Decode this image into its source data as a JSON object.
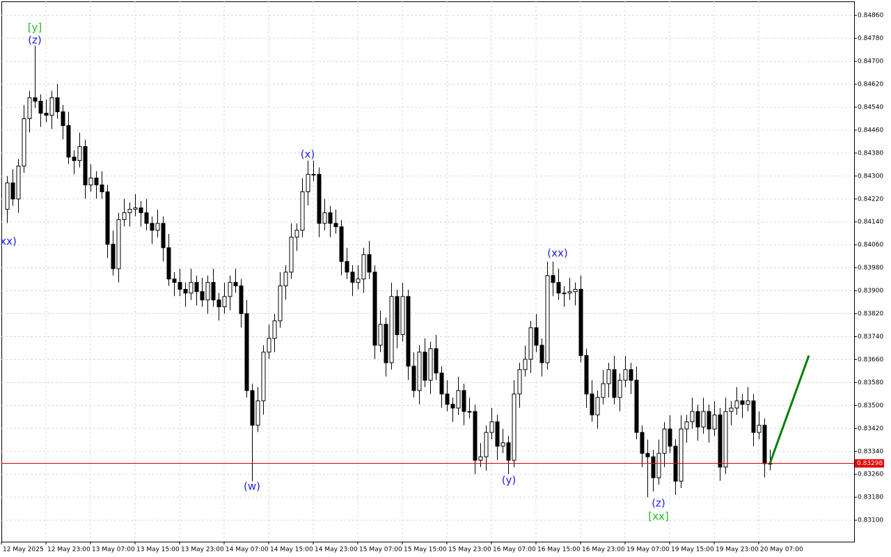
{
  "chart_data": {
    "type": "candlestick",
    "open": [
      0.84184,
      0.84276,
      0.8422,
      0.84335,
      0.845,
      0.84573,
      0.84561,
      0.84519,
      0.84512,
      0.84573,
      0.84524,
      0.84476,
      0.84366,
      0.84354,
      0.84403,
      0.84269,
      0.84293,
      0.84269,
      0.84245,
      0.84062,
      0.83977,
      0.84148,
      0.84172,
      0.84184,
      0.84189,
      0.84172,
      0.84135,
      0.84111,
      0.84135,
      0.8405,
      0.83941,
      0.83929,
      0.83905,
      0.83892,
      0.83929,
      0.83897,
      0.83868,
      0.83929,
      0.83868,
      0.83844,
      0.8388,
      0.83929,
      0.83917,
      0.8382,
      0.83552,
      0.83431,
      0.83516,
      0.83686,
      0.83734,
      0.83795,
      0.83917,
      0.83965,
      0.84087,
      0.84111,
      0.84245,
      0.84306,
      0.84306,
      0.84135,
      0.84172,
      0.84135,
      0.84123,
      0.84002,
      0.83965,
      0.83929,
      0.83941,
      0.84026,
      0.83965,
      0.8371,
      0.83783,
      0.83649,
      0.8388,
      0.83747,
      0.8388,
      0.83637,
      0.83552,
      0.83686,
      0.83588,
      0.83698,
      0.83613,
      0.8354,
      0.83504,
      0.83491,
      0.83552,
      0.83479,
      0.83479,
      0.83309,
      0.83321,
      0.83406,
      0.83443,
      0.83358,
      0.8337,
      0.83309,
      0.8354,
      0.83625,
      0.83661,
      0.83771,
      0.8371,
      0.83649,
      0.83953,
      0.83929,
      0.83892,
      0.83892,
      0.83897,
      0.83905,
      0.83674,
      0.8354,
      0.83467,
      0.83528,
      0.83576,
      0.83625,
      0.83528,
      0.83588,
      0.83625,
      0.83588,
      0.83406,
      0.83333,
      0.83321,
      0.83248,
      0.83333,
      0.83418,
      0.83358,
      0.83236,
      0.83418,
      0.83443,
      0.83479,
      0.83425,
      0.83479,
      0.83418,
      0.83467,
      0.83285,
      0.83479,
      0.83491,
      0.83516,
      0.83504,
      0.83516,
      0.83406,
      0.83431,
      0.83297
    ],
    "high": [
      0.843,
      0.84324,
      0.84359,
      0.84548,
      0.84597,
      0.84755,
      0.84585,
      0.84567,
      0.84597,
      0.84621,
      0.84548,
      0.84524,
      0.8439,
      0.84451,
      0.84427,
      0.84341,
      0.84317,
      0.84317,
      0.84269,
      0.8411,
      0.84172,
      0.8422,
      0.84208,
      0.84237,
      0.84213,
      0.8422,
      0.84159,
      0.84183,
      0.84159,
      0.84098,
      0.83965,
      0.83977,
      0.83929,
      0.83977,
      0.83953,
      0.83945,
      0.83953,
      0.83977,
      0.83892,
      0.83928,
      0.83953,
      0.83977,
      0.83941,
      0.83868,
      0.83576,
      0.83564,
      0.8371,
      0.83782,
      0.83819,
      0.83965,
      0.83989,
      0.84135,
      0.84135,
      0.84293,
      0.84354,
      0.84354,
      0.8433,
      0.8422,
      0.84196,
      0.84183,
      0.84147,
      0.8405,
      0.83989,
      0.83989,
      0.8405,
      0.84074,
      0.83989,
      0.83831,
      0.83807,
      0.83928,
      0.83904,
      0.83928,
      0.83904,
      0.83685,
      0.8371,
      0.83734,
      0.83722,
      0.83746,
      0.83637,
      0.83588,
      0.83528,
      0.836,
      0.83576,
      0.83527,
      0.83503,
      0.83369,
      0.8343,
      0.83491,
      0.83467,
      0.83418,
      0.83394,
      0.83588,
      0.83649,
      0.83709,
      0.83795,
      0.83819,
      0.83734,
      0.84001,
      0.84002,
      0.83977,
      0.83916,
      0.83945,
      0.83929,
      0.83953,
      0.83698,
      0.83588,
      0.83552,
      0.83624,
      0.83649,
      0.83673,
      0.83612,
      0.83673,
      0.83649,
      0.83636,
      0.8343,
      0.83381,
      0.83345,
      0.83381,
      0.83442,
      0.83466,
      0.83382,
      0.83466,
      0.83467,
      0.83527,
      0.83503,
      0.83527,
      0.83503,
      0.83515,
      0.83491,
      0.83527,
      0.83515,
      0.83564,
      0.8354,
      0.83564,
      0.8354,
      0.83479,
      0.83455,
      0.83346
    ],
    "low": [
      0.84136,
      0.84196,
      0.84172,
      0.84311,
      0.84452,
      0.84537,
      0.84471,
      0.84488,
      0.84464,
      0.845,
      0.84428,
      0.84342,
      0.84306,
      0.8433,
      0.84221,
      0.84245,
      0.84221,
      0.84221,
      0.84014,
      0.83953,
      0.83929,
      0.84124,
      0.84124,
      0.8416,
      0.84124,
      0.84111,
      0.84063,
      0.84087,
      0.84002,
      0.83917,
      0.83881,
      0.83881,
      0.83844,
      0.83868,
      0.83849,
      0.83844,
      0.8382,
      0.83844,
      0.83796,
      0.8382,
      0.83832,
      0.83893,
      0.83772,
      0.83528,
      0.83236,
      0.83407,
      0.83468,
      0.83662,
      0.83686,
      0.83771,
      0.83869,
      0.83941,
      0.84039,
      0.84087,
      0.84197,
      0.84282,
      0.84087,
      0.84111,
      0.84087,
      0.84099,
      0.83954,
      0.83941,
      0.83881,
      0.83905,
      0.83893,
      0.83941,
      0.83662,
      0.83686,
      0.83601,
      0.83625,
      0.83699,
      0.83723,
      0.83589,
      0.83528,
      0.83504,
      0.83564,
      0.8354,
      0.83589,
      0.83492,
      0.8348,
      0.83443,
      0.83467,
      0.83431,
      0.83455,
      0.83261,
      0.83285,
      0.83273,
      0.83382,
      0.8331,
      0.83334,
      0.83261,
      0.83285,
      0.83492,
      0.83601,
      0.83613,
      0.83686,
      0.83601,
      0.83625,
      0.83881,
      0.83868,
      0.83844,
      0.83868,
      0.83849,
      0.8365,
      0.83492,
      0.83443,
      0.83419,
      0.83504,
      0.83528,
      0.83504,
      0.8348,
      0.83564,
      0.8354,
      0.83382,
      0.83285,
      0.8318,
      0.832,
      0.83224,
      0.83285,
      0.83334,
      0.83188,
      0.83212,
      0.8337,
      0.83419,
      0.83377,
      0.83401,
      0.8337,
      0.83394,
      0.83237,
      0.83261,
      0.83431,
      0.83467,
      0.83456,
      0.8348,
      0.83358,
      0.83382,
      0.83249,
      0.83274
    ],
    "close": [
      0.84276,
      0.8422,
      0.84335,
      0.845,
      0.84573,
      0.84561,
      0.84519,
      0.84512,
      0.84573,
      0.84524,
      0.84476,
      0.84366,
      0.84354,
      0.84403,
      0.84269,
      0.84293,
      0.84269,
      0.84245,
      0.84062,
      0.83977,
      0.84148,
      0.84172,
      0.84184,
      0.84189,
      0.84172,
      0.84135,
      0.84111,
      0.84135,
      0.8405,
      0.83941,
      0.83929,
      0.83905,
      0.83892,
      0.83929,
      0.83897,
      0.83868,
      0.83929,
      0.83868,
      0.83844,
      0.8388,
      0.83929,
      0.83917,
      0.8382,
      0.83552,
      0.83431,
      0.83516,
      0.83686,
      0.83734,
      0.83795,
      0.83917,
      0.83965,
      0.84087,
      0.84111,
      0.84245,
      0.84306,
      0.84306,
      0.84135,
      0.84172,
      0.84135,
      0.84123,
      0.84002,
      0.83965,
      0.83929,
      0.83941,
      0.84026,
      0.83965,
      0.8371,
      0.83783,
      0.83649,
      0.8388,
      0.83747,
      0.8388,
      0.83637,
      0.83552,
      0.83686,
      0.83588,
      0.83698,
      0.83613,
      0.8354,
      0.83504,
      0.83491,
      0.83552,
      0.83479,
      0.83479,
      0.83309,
      0.83321,
      0.83406,
      0.83443,
      0.83358,
      0.8337,
      0.83309,
      0.8354,
      0.83625,
      0.83661,
      0.83771,
      0.8371,
      0.83649,
      0.83953,
      0.83929,
      0.83892,
      0.83892,
      0.83897,
      0.83905,
      0.83674,
      0.8354,
      0.83467,
      0.83528,
      0.83576,
      0.83625,
      0.83528,
      0.83588,
      0.83625,
      0.83588,
      0.83406,
      0.83333,
      0.83321,
      0.83248,
      0.83333,
      0.83418,
      0.83358,
      0.83236,
      0.83418,
      0.83443,
      0.83479,
      0.83425,
      0.83479,
      0.83418,
      0.83467,
      0.83285,
      0.83479,
      0.83491,
      0.83516,
      0.83504,
      0.83516,
      0.83406,
      0.83431,
      0.83297,
      0.83298
    ],
    "x_labels": [
      "12 May 2025",
      "12 May 23:00",
      "13 May 07:00",
      "13 May 15:00",
      "13 May 23:00",
      "14 May 07:00",
      "14 May 15:00",
      "14 May 23:00",
      "15 May 07:00",
      "15 May 15:00",
      "15 May 23:00",
      "16 May 07:00",
      "16 May 15:00",
      "16 May 23:00",
      "19 May 07:00",
      "19 May 15:00",
      "19 May 23:00",
      "20 May 07:00"
    ],
    "ylim": [
      0.83025,
      0.84909
    ],
    "yticks": [
      {
        "value": 0.8486,
        "label": "0.84860"
      },
      {
        "value": 0.8478,
        "label": "0.84780"
      },
      {
        "value": 0.847,
        "label": "0.84700"
      },
      {
        "value": 0.8462,
        "label": "0.84620"
      },
      {
        "value": 0.8454,
        "label": "0.84540"
      },
      {
        "value": 0.8446,
        "label": "0.84460"
      },
      {
        "value": 0.8438,
        "label": "0.84380"
      },
      {
        "value": 0.843,
        "label": "0.84300"
      },
      {
        "value": 0.8422,
        "label": "0.84220"
      },
      {
        "value": 0.8414,
        "label": "0.84140"
      },
      {
        "value": 0.8406,
        "label": "0.84060"
      },
      {
        "value": 0.8398,
        "label": "0.83980"
      },
      {
        "value": 0.839,
        "label": "0.83900"
      },
      {
        "value": 0.8382,
        "label": "0.83820"
      },
      {
        "value": 0.8374,
        "label": "0.83740"
      },
      {
        "value": 0.8366,
        "label": "0.83660"
      },
      {
        "value": 0.8358,
        "label": "0.83580"
      },
      {
        "value": 0.835,
        "label": "0.83500"
      },
      {
        "value": 0.8342,
        "label": "0.83420"
      },
      {
        "value": 0.8334,
        "label": "0.83340"
      },
      {
        "value": 0.8326,
        "label": "0.83260"
      },
      {
        "value": 0.8318,
        "label": "0.83180"
      },
      {
        "value": 0.831,
        "label": "0.83100"
      }
    ],
    "grid": true,
    "current_price": {
      "value": 0.83298,
      "label": "0.83298",
      "color": "#e00000"
    },
    "forecast": {
      "from": 0.83298,
      "to": 0.83674,
      "color": "#008000"
    },
    "annotations": [
      {
        "text": "[y]",
        "color": "#22bb22"
      },
      {
        "text": "(z)",
        "color": "#2222dd"
      },
      {
        "text": "xx)",
        "color": "#2222dd"
      },
      {
        "text": "(x)",
        "color": "#2222dd"
      },
      {
        "text": "(w)",
        "color": "#2222dd"
      },
      {
        "text": "(xx)",
        "color": "#2222dd"
      },
      {
        "text": "(y)",
        "color": "#2222dd"
      },
      {
        "text": "(z)",
        "color": "#2222dd"
      },
      {
        "text": "[xx]",
        "color": "#22bb22"
      }
    ]
  }
}
